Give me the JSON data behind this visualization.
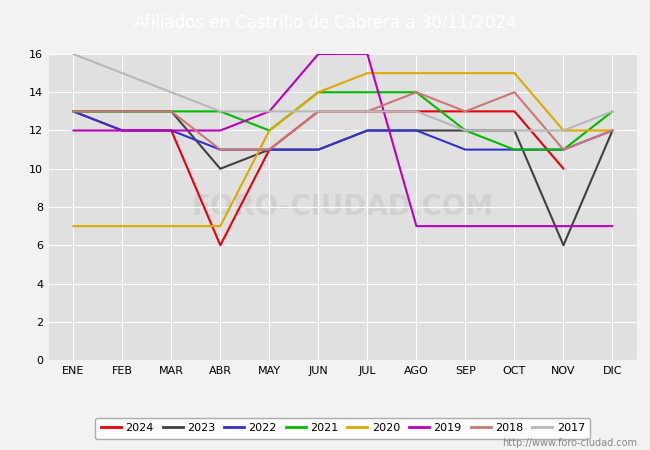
{
  "title": "Afiliados en Castrillo de Cabrera a 30/11/2024",
  "ylim": [
    0,
    16
  ],
  "yticks": [
    0,
    2,
    4,
    6,
    8,
    10,
    12,
    14,
    16
  ],
  "months": [
    "ENE",
    "FEB",
    "MAR",
    "ABR",
    "MAY",
    "JUN",
    "JUL",
    "AGO",
    "SEP",
    "OCT",
    "NOV",
    "DIC"
  ],
  "watermark": "http://www.foro-ciudad.com",
  "series": {
    "2024": {
      "color": "#e8000d",
      "data": [
        13,
        12,
        12,
        6,
        11,
        13,
        13,
        13,
        13,
        13,
        10,
        null
      ]
    },
    "2023": {
      "color": "#404040",
      "data": [
        13,
        13,
        13,
        10,
        11,
        11,
        12,
        12,
        12,
        12,
        6,
        12
      ]
    },
    "2022": {
      "color": "#3333cc",
      "data": [
        13,
        12,
        12,
        11,
        11,
        11,
        12,
        12,
        11,
        11,
        11,
        12
      ]
    },
    "2021": {
      "color": "#00bb00",
      "data": [
        13,
        13,
        13,
        13,
        12,
        14,
        14,
        14,
        12,
        11,
        11,
        13
      ]
    },
    "2020": {
      "color": "#ddaa00",
      "data": [
        7,
        7,
        7,
        7,
        12,
        14,
        15,
        15,
        15,
        15,
        12,
        12
      ]
    },
    "2019": {
      "color": "#bb00bb",
      "data": [
        12,
        12,
        12,
        12,
        13,
        16,
        16,
        7,
        7,
        7,
        7,
        7
      ]
    },
    "2018": {
      "color": "#cc7777",
      "data": [
        13,
        13,
        13,
        11,
        11,
        13,
        13,
        14,
        13,
        14,
        11,
        12
      ]
    },
    "2017": {
      "color": "#b8b8b8",
      "data": [
        16,
        15,
        14,
        13,
        13,
        13,
        13,
        13,
        12,
        12,
        12,
        13
      ]
    }
  },
  "legend_years": [
    "2024",
    "2023",
    "2022",
    "2021",
    "2020",
    "2019",
    "2018",
    "2017"
  ],
  "title_fontsize": 12,
  "tick_fontsize": 8,
  "legend_fontsize": 8,
  "linewidth": 1.5,
  "title_bg": "#4472c4",
  "title_fg": "#ffffff",
  "plot_bg": "#e0e0e0",
  "fig_bg": "#f2f2f2",
  "grid_color": "#ffffff",
  "watermark_color": "#c8c8c8",
  "watermark_chart_text": "FORO-CIUDAD.COM",
  "url_color": "#888888"
}
